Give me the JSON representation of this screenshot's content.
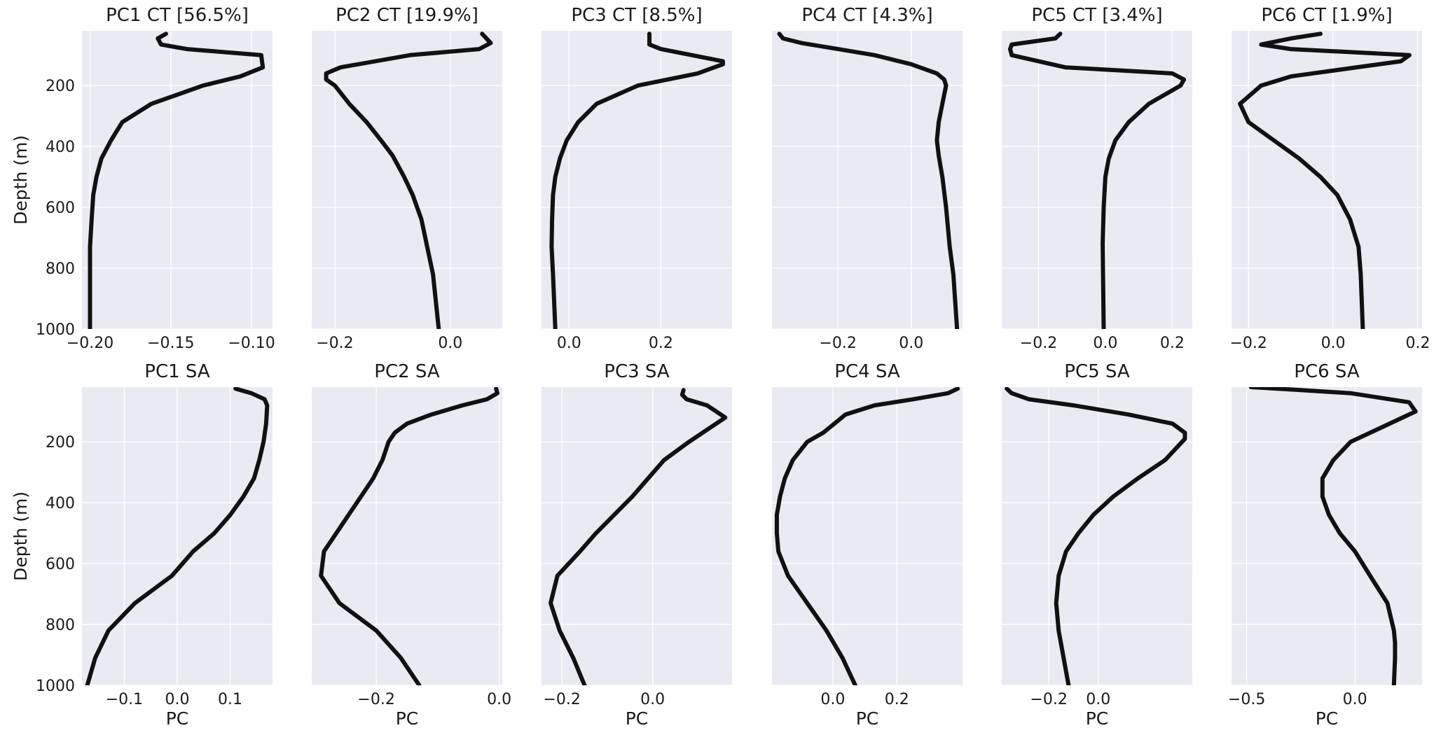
{
  "chart_data": [
    {
      "type": "line",
      "title": "PC1 CT [56.5%]",
      "xlabel": "",
      "ylabel": "Depth (m)",
      "xlim": [
        -0.205,
        -0.087
      ],
      "ylim": [
        1000,
        20
      ],
      "xticks": [
        -0.2,
        -0.15,
        -0.1
      ],
      "xtick_labels": [
        "−0.20",
        "−0.15",
        "−0.10"
      ],
      "yticks": [
        200,
        400,
        600,
        800,
        1000
      ],
      "ytick_labels": [
        "200",
        "400",
        "600",
        "800",
        "1000"
      ],
      "grid": true,
      "series": [
        {
          "x": [
            -0.153,
            -0.158,
            -0.156,
            -0.14,
            -0.094,
            -0.093,
            -0.107,
            -0.13,
            -0.162,
            -0.18,
            -0.187,
            -0.193,
            -0.196,
            -0.198,
            -0.199,
            -0.2,
            -0.2,
            -0.2
          ],
          "y": [
            30,
            45,
            65,
            80,
            100,
            140,
            170,
            200,
            260,
            320,
            380,
            440,
            500,
            560,
            640,
            730,
            820,
            1000
          ]
        }
      ]
    },
    {
      "type": "line",
      "title": "PC2 CT [19.9%]",
      "xlabel": "",
      "ylabel": "",
      "xlim": [
        -0.24,
        0.09
      ],
      "ylim": [
        1000,
        20
      ],
      "xticks": [
        -0.2,
        0.0
      ],
      "xtick_labels": [
        "−0.2",
        "0.0"
      ],
      "yticks": [
        200,
        400,
        600,
        800,
        1000
      ],
      "ytick_labels": [
        "",
        "",
        "",
        "",
        ""
      ],
      "grid": true,
      "series": [
        {
          "x": [
            0.055,
            0.07,
            0.05,
            -0.07,
            -0.19,
            -0.215,
            -0.215,
            -0.2,
            -0.175,
            -0.145,
            -0.12,
            -0.1,
            -0.08,
            -0.065,
            -0.05,
            -0.04,
            -0.03,
            -0.02
          ],
          "y": [
            30,
            60,
            80,
            100,
            140,
            160,
            180,
            200,
            260,
            320,
            380,
            430,
            500,
            560,
            640,
            730,
            820,
            1000
          ]
        }
      ]
    },
    {
      "type": "line",
      "title": "PC3 CT [8.5%]",
      "xlabel": "",
      "ylabel": "",
      "xlim": [
        -0.06,
        0.355
      ],
      "ylim": [
        1000,
        20
      ],
      "xticks": [
        0.0,
        0.2
      ],
      "xtick_labels": [
        "0.0",
        "0.2"
      ],
      "yticks": [
        200,
        400,
        600,
        800,
        1000
      ],
      "ytick_labels": [
        "",
        "",
        "",
        "",
        ""
      ],
      "grid": true,
      "series": [
        {
          "x": [
            0.175,
            0.175,
            0.175,
            0.2,
            0.335,
            0.335,
            0.28,
            0.15,
            0.06,
            0.02,
            -0.005,
            -0.02,
            -0.03,
            -0.035,
            -0.037,
            -0.038,
            -0.035,
            -0.03
          ],
          "y": [
            30,
            45,
            65,
            80,
            120,
            130,
            160,
            200,
            260,
            320,
            380,
            440,
            500,
            560,
            640,
            730,
            820,
            1000
          ]
        }
      ]
    },
    {
      "type": "line",
      "title": "PC4 CT [4.3%]",
      "xlabel": "",
      "ylabel": "",
      "xlim": [
        -0.38,
        0.14
      ],
      "ylim": [
        1000,
        20
      ],
      "xticks": [
        -0.2,
        0.0
      ],
      "xtick_labels": [
        "−0.2",
        "0.0"
      ],
      "yticks": [
        200,
        400,
        600,
        800,
        1000
      ],
      "ytick_labels": [
        "",
        "",
        "",
        "",
        ""
      ],
      "grid": true,
      "series": [
        {
          "x": [
            -0.36,
            -0.35,
            -0.3,
            -0.2,
            -0.1,
            0.0,
            0.07,
            0.09,
            0.095,
            0.085,
            0.075,
            0.07,
            0.075,
            0.085,
            0.095,
            0.105,
            0.115,
            0.125
          ],
          "y": [
            30,
            45,
            60,
            80,
            100,
            130,
            160,
            180,
            200,
            260,
            320,
            380,
            430,
            500,
            600,
            730,
            820,
            1000
          ]
        }
      ]
    },
    {
      "type": "line",
      "title": "PC5 CT [3.4%]",
      "xlabel": "",
      "ylabel": "",
      "xlim": [
        -0.31,
        0.26
      ],
      "ylim": [
        1000,
        20
      ],
      "xticks": [
        -0.2,
        0.0,
        0.2
      ],
      "xtick_labels": [
        "−0.2",
        "0.0",
        "0.2"
      ],
      "yticks": [
        200,
        400,
        600,
        800,
        1000
      ],
      "ytick_labels": [
        "",
        "",
        "",
        "",
        ""
      ],
      "grid": true,
      "series": [
        {
          "x": [
            -0.135,
            -0.15,
            -0.28,
            -0.285,
            -0.28,
            -0.12,
            0.2,
            0.235,
            0.225,
            0.13,
            0.07,
            0.03,
            0.01,
            0.0,
            -0.005,
            -0.008,
            -0.007,
            -0.005
          ],
          "y": [
            30,
            45,
            65,
            80,
            100,
            140,
            160,
            180,
            200,
            260,
            320,
            380,
            440,
            500,
            600,
            720,
            820,
            1000
          ]
        }
      ]
    },
    {
      "type": "line",
      "title": "PC6 CT [1.9%]",
      "xlabel": "",
      "ylabel": "",
      "xlim": [
        -0.24,
        0.21
      ],
      "ylim": [
        1000,
        20
      ],
      "xticks": [
        -0.2,
        0.0,
        0.2
      ],
      "xtick_labels": [
        "−0.2",
        "0.0",
        "0.2"
      ],
      "yticks": [
        200,
        400,
        600,
        800,
        1000
      ],
      "ytick_labels": [
        "",
        "",
        "",
        "",
        ""
      ],
      "grid": true,
      "series": [
        {
          "x": [
            -0.03,
            -0.1,
            -0.17,
            -0.1,
            0.18,
            0.16,
            -0.1,
            -0.17,
            -0.22,
            -0.2,
            -0.14,
            -0.08,
            -0.03,
            0.01,
            0.04,
            0.06,
            0.065,
            0.07
          ],
          "y": [
            30,
            45,
            65,
            80,
            100,
            120,
            170,
            200,
            260,
            320,
            380,
            440,
            500,
            560,
            640,
            730,
            820,
            1000
          ]
        }
      ]
    },
    {
      "type": "line",
      "title": "PC1 SA",
      "xlabel": "PC",
      "ylabel": "Depth (m)",
      "xlim": [
        -0.18,
        0.18
      ],
      "ylim": [
        1000,
        20
      ],
      "xticks": [
        -0.1,
        0.0,
        0.1
      ],
      "xtick_labels": [
        "−0.1",
        "0.0",
        "0.1"
      ],
      "yticks": [
        200,
        400,
        600,
        800,
        1000
      ],
      "ytick_labels": [
        "200",
        "400",
        "600",
        "800",
        "1000"
      ],
      "grid": true,
      "series": [
        {
          "x": [
            0.11,
            0.14,
            0.165,
            0.17,
            0.168,
            0.163,
            0.155,
            0.145,
            0.125,
            0.1,
            0.07,
            0.03,
            -0.01,
            -0.08,
            -0.13,
            -0.155,
            -0.17
          ],
          "y": [
            25,
            40,
            60,
            80,
            140,
            200,
            260,
            320,
            380,
            440,
            500,
            560,
            640,
            730,
            820,
            910,
            1000
          ]
        }
      ]
    },
    {
      "type": "line",
      "title": "PC2 SA",
      "xlabel": "PC",
      "ylabel": "",
      "xlim": [
        -0.305,
        0.005
      ],
      "ylim": [
        1000,
        20
      ],
      "xticks": [
        -0.2,
        0.0
      ],
      "xtick_labels": [
        "−0.2",
        "0.0"
      ],
      "yticks": [
        200,
        400,
        600,
        800,
        1000
      ],
      "ytick_labels": [
        "",
        "",
        "",
        "",
        ""
      ],
      "grid": true,
      "series": [
        {
          "x": [
            -0.005,
            -0.003,
            -0.02,
            -0.06,
            -0.11,
            -0.15,
            -0.17,
            -0.18,
            -0.19,
            -0.205,
            -0.225,
            -0.245,
            -0.265,
            -0.285,
            -0.29,
            -0.26,
            -0.2,
            -0.16,
            -0.13
          ],
          "y": [
            25,
            40,
            60,
            80,
            110,
            140,
            170,
            200,
            260,
            320,
            380,
            440,
            500,
            560,
            640,
            730,
            820,
            910,
            1000
          ]
        }
      ]
    },
    {
      "type": "line",
      "title": "PC3 SA",
      "xlabel": "PC",
      "ylabel": "",
      "xlim": [
        -0.245,
        0.175
      ],
      "ylim": [
        1000,
        20
      ],
      "xticks": [
        -0.2,
        0.0
      ],
      "xtick_labels": [
        "−0.2",
        "0.0"
      ],
      "yticks": [
        200,
        400,
        600,
        800,
        1000
      ],
      "ytick_labels": [
        "",
        "",
        "",
        "",
        ""
      ],
      "grid": true,
      "series": [
        {
          "x": [
            0.068,
            0.065,
            0.075,
            0.12,
            0.16,
            0.13,
            0.08,
            0.025,
            -0.01,
            -0.045,
            -0.085,
            -0.125,
            -0.16,
            -0.21,
            -0.225,
            -0.205,
            -0.175,
            -0.15
          ],
          "y": [
            30,
            45,
            60,
            80,
            120,
            150,
            200,
            260,
            320,
            380,
            440,
            500,
            560,
            640,
            730,
            820,
            910,
            1000
          ]
        }
      ]
    },
    {
      "type": "line",
      "title": "PC4 SA",
      "xlabel": "PC",
      "ylabel": "",
      "xlim": [
        -0.19,
        0.405
      ],
      "ylim": [
        1000,
        20
      ],
      "xticks": [
        0.0,
        0.2
      ],
      "xtick_labels": [
        "0.0",
        "0.2"
      ],
      "yticks": [
        200,
        400,
        600,
        800,
        1000
      ],
      "ytick_labels": [
        "",
        "",
        "",
        "",
        ""
      ],
      "grid": true,
      "series": [
        {
          "x": [
            0.39,
            0.36,
            0.25,
            0.13,
            0.04,
            0.005,
            -0.03,
            -0.08,
            -0.125,
            -0.15,
            -0.165,
            -0.175,
            -0.175,
            -0.17,
            -0.14,
            -0.08,
            -0.02,
            0.03,
            0.07
          ],
          "y": [
            25,
            40,
            60,
            80,
            110,
            140,
            170,
            200,
            260,
            320,
            380,
            440,
            500,
            560,
            640,
            730,
            820,
            910,
            1000
          ]
        }
      ]
    },
    {
      "type": "line",
      "title": "PC5 SA",
      "xlabel": "PC",
      "ylabel": "",
      "xlim": [
        -0.39,
        0.38
      ],
      "ylim": [
        1000,
        20
      ],
      "xticks": [
        -0.2,
        0.0
      ],
      "xtick_labels": [
        "−0.2",
        "0.0"
      ],
      "yticks": [
        200,
        400,
        600,
        800,
        1000
      ],
      "ytick_labels": [
        "",
        "",
        "",
        "",
        ""
      ],
      "grid": true,
      "series": [
        {
          "x": [
            -0.37,
            -0.35,
            -0.28,
            -0.1,
            0.12,
            0.3,
            0.35,
            0.35,
            0.27,
            0.16,
            0.06,
            -0.02,
            -0.08,
            -0.13,
            -0.16,
            -0.17,
            -0.16,
            -0.14,
            -0.12
          ],
          "y": [
            25,
            40,
            60,
            80,
            110,
            140,
            170,
            190,
            260,
            320,
            380,
            440,
            500,
            560,
            640,
            730,
            820,
            910,
            1000
          ]
        }
      ]
    },
    {
      "type": "line",
      "title": "PC6 SA",
      "xlabel": "PC",
      "ylabel": "",
      "xlim": [
        -0.57,
        0.31
      ],
      "ylim": [
        1000,
        20
      ],
      "xticks": [
        -0.5,
        0.0
      ],
      "xtick_labels": [
        "−0.5",
        "0.0"
      ],
      "yticks": [
        200,
        400,
        600,
        800,
        1000
      ],
      "ytick_labels": [
        "",
        "",
        "",
        "",
        ""
      ],
      "grid": true,
      "series": [
        {
          "x": [
            -0.48,
            -0.25,
            -0.02,
            0.25,
            0.28,
            0.22,
            0.1,
            -0.02,
            -0.1,
            -0.15,
            -0.15,
            -0.12,
            -0.07,
            0.0,
            0.07,
            0.15,
            0.18,
            0.185,
            0.185,
            0.18
          ],
          "y": [
            20,
            30,
            40,
            70,
            100,
            120,
            160,
            200,
            260,
            320,
            380,
            440,
            500,
            560,
            640,
            730,
            820,
            860,
            910,
            1000
          ]
        }
      ]
    }
  ]
}
